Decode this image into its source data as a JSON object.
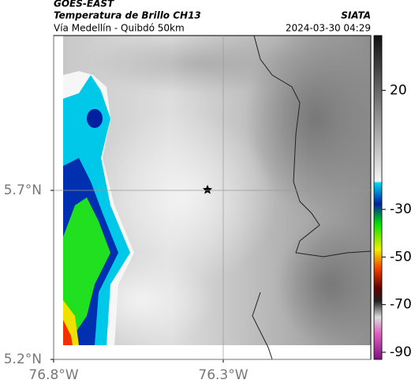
{
  "header": {
    "source": "GOES-EAST",
    "product": "Temperatura de Brillo CH13",
    "region": "Vía Medellín - Quibdó 50km",
    "agency": "SIATA",
    "datetime": "2024-03-30 04:29"
  },
  "map": {
    "xlim": [
      -76.8,
      -75.865
    ],
    "ylim": [
      5.2,
      6.158
    ],
    "xticks": [
      {
        "value": -76.8,
        "label": "76.8°W"
      },
      {
        "value": -76.3,
        "label": "76.3°W"
      }
    ],
    "yticks": [
      {
        "value": 5.2,
        "label": "5.2°N"
      },
      {
        "value": 5.7,
        "label": "5.7°N"
      }
    ],
    "grid": true
  },
  "colorbar": {
    "lim": [
      -93,
      43
    ],
    "ticks": [
      20,
      -30,
      -50,
      -70,
      -90
    ]
  }
}
